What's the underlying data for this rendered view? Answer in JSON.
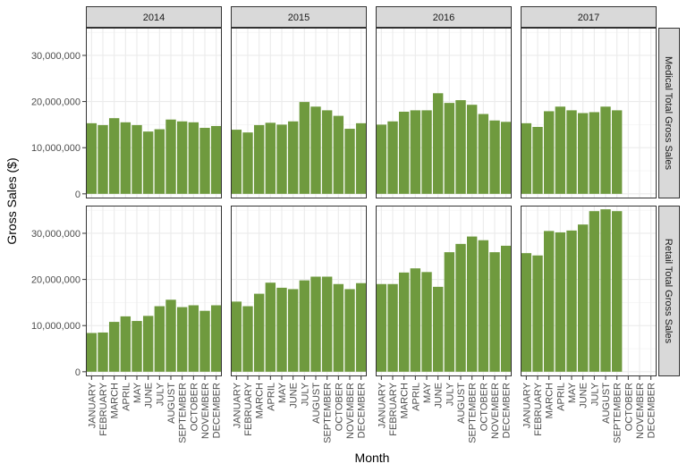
{
  "chart_data": {
    "type": "bar",
    "ylabel": "Gross Sales ($)",
    "xlabel": "Month",
    "ylim": [
      -1000000,
      36000000
    ],
    "yticks": [
      0,
      10000000,
      20000000,
      30000000
    ],
    "ytick_labels": [
      "0",
      "10,000,000",
      "20,000,000",
      "30,000,000"
    ],
    "categories": [
      "JANUARY",
      "FEBRUARY",
      "MARCH",
      "APRIL",
      "MAY",
      "JUNE",
      "JULY",
      "AUGUST",
      "SEPTEMBER",
      "OCTOBER",
      "NOVEMBER",
      "DECEMBER"
    ],
    "columns": [
      "2014",
      "2015",
      "2016",
      "2017"
    ],
    "rows": [
      "Medical Total Gross Sales",
      "Retail Total Gross Sales"
    ],
    "bar_color": "#6f9a3e",
    "grid": true,
    "panels": [
      {
        "row": 0,
        "col": 0,
        "values": [
          15300000,
          14900000,
          16400000,
          15500000,
          14900000,
          13500000,
          14000000,
          16100000,
          15700000,
          15500000,
          14300000,
          14700000
        ]
      },
      {
        "row": 0,
        "col": 1,
        "values": [
          13900000,
          13300000,
          14900000,
          15400000,
          15000000,
          15700000,
          19900000,
          18900000,
          18100000,
          16900000,
          14100000,
          15300000
        ]
      },
      {
        "row": 0,
        "col": 2,
        "values": [
          15000000,
          15700000,
          17800000,
          18100000,
          18100000,
          21800000,
          19700000,
          20300000,
          19300000,
          17300000,
          15900000,
          15600000
        ]
      },
      {
        "row": 0,
        "col": 3,
        "values": [
          15300000,
          14500000,
          17900000,
          18900000,
          18100000,
          17500000,
          17700000,
          18900000,
          18100000,
          null,
          null,
          null
        ]
      },
      {
        "row": 1,
        "col": 0,
        "values": [
          8400000,
          8500000,
          10800000,
          12000000,
          11000000,
          12100000,
          14200000,
          15600000,
          14000000,
          14400000,
          13200000,
          14400000
        ]
      },
      {
        "row": 1,
        "col": 1,
        "values": [
          15200000,
          14200000,
          16900000,
          19300000,
          18200000,
          17900000,
          19800000,
          20600000,
          20600000,
          19000000,
          17900000,
          19200000
        ]
      },
      {
        "row": 1,
        "col": 2,
        "values": [
          19000000,
          19000000,
          21500000,
          22400000,
          21600000,
          18400000,
          25900000,
          27700000,
          29300000,
          28500000,
          25900000,
          27300000
        ]
      },
      {
        "row": 1,
        "col": 3,
        "values": [
          25700000,
          25200000,
          30500000,
          30200000,
          30600000,
          31900000,
          34800000,
          35200000,
          34800000,
          null,
          null,
          null
        ]
      }
    ]
  }
}
